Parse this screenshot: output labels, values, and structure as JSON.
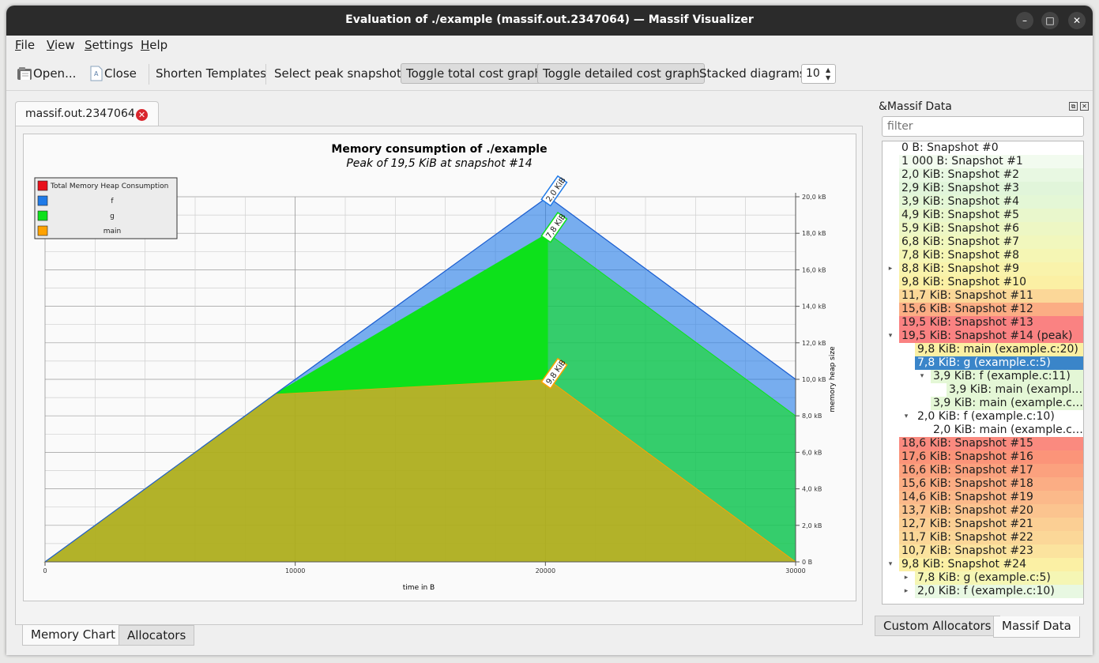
{
  "window": {
    "title": "Evaluation of ./example (massif.out.2347064) — Massif Visualizer",
    "minimize": "–",
    "maximize": "□",
    "close": "✕"
  },
  "menu": [
    "File",
    "View",
    "Settings",
    "Help"
  ],
  "toolbar": {
    "open": "Open...",
    "close": "Close",
    "shorten": "Shorten Templates",
    "select_peak": "Select peak snapshot",
    "toggle_total": "Toggle total cost graph",
    "toggle_detailed": "Toggle detailed cost graph",
    "stacked_label": "Stacked diagrams:",
    "stacked_value": "10"
  },
  "doc_tab": "massif.out.2347064",
  "bottom_tabs": [
    "Memory Chart",
    "Allocators"
  ],
  "dock": {
    "title": "&Massif Data",
    "filter_placeholder": "filter",
    "tabs": [
      "Custom Allocators",
      "Massif Data"
    ]
  },
  "colors": {
    "total": "#e8101a",
    "f": "#1f7ae8",
    "g": "#0de11b",
    "main": "#ffa200",
    "selection": "#3a85c9"
  },
  "tree": [
    {
      "label": "0 B: Snapshot #0",
      "depth": 0,
      "color": "#ffffff",
      "exp": ""
    },
    {
      "label": "1 000 B: Snapshot #1",
      "depth": 0,
      "color": "#f2fbef",
      "exp": ""
    },
    {
      "label": "2,0 KiB: Snapshot #2",
      "depth": 0,
      "color": "#e8f8e2",
      "exp": ""
    },
    {
      "label": "2,9 KiB: Snapshot #3",
      "depth": 0,
      "color": "#e1f5da",
      "exp": ""
    },
    {
      "label": "3,9 KiB: Snapshot #4",
      "depth": 0,
      "color": "#e4f7d6",
      "exp": ""
    },
    {
      "label": "4,9 KiB: Snapshot #5",
      "depth": 0,
      "color": "#e9f7cc",
      "exp": ""
    },
    {
      "label": "5,9 KiB: Snapshot #6",
      "depth": 0,
      "color": "#edf7c4",
      "exp": ""
    },
    {
      "label": "6,8 KiB: Snapshot #7",
      "depth": 0,
      "color": "#f1f7bd",
      "exp": ""
    },
    {
      "label": "7,8 KiB: Snapshot #8",
      "depth": 0,
      "color": "#f5f6b4",
      "exp": ""
    },
    {
      "label": "8,8 KiB: Snapshot #9",
      "depth": 0,
      "color": "#f9f3ab",
      "exp": "▸"
    },
    {
      "label": "9,8 KiB: Snapshot #10",
      "depth": 0,
      "color": "#fbf0a4",
      "exp": ""
    },
    {
      "label": "11,7 KiB: Snapshot #11",
      "depth": 0,
      "color": "#fbd798",
      "exp": ""
    },
    {
      "label": "15,6 KiB: Snapshot #12",
      "depth": 0,
      "color": "#fbad84",
      "exp": ""
    },
    {
      "label": "19,5 KiB: Snapshot #13",
      "depth": 0,
      "color": "#fa8282",
      "exp": ""
    },
    {
      "label": "19,5 KiB: Snapshot #14 (peak)",
      "depth": 0,
      "color": "#fa8282",
      "exp": "▾"
    },
    {
      "label": "9,8 KiB: main (example.c:20)",
      "depth": 1,
      "color": "#fbf0a4",
      "exp": ""
    },
    {
      "label": "7,8 KiB: g (example.c:5)",
      "depth": 1,
      "color": "#3a85c9",
      "exp": "▾",
      "sel": true
    },
    {
      "label": "3,9 KiB: f (example.c:11)",
      "depth": 2,
      "color": "#e4f7d6",
      "exp": "▾"
    },
    {
      "label": "3,9 KiB: main (exampl…",
      "depth": 3,
      "color": "#e4f7d6",
      "exp": ""
    },
    {
      "label": "3,9 KiB: main (example.c:…",
      "depth": 2,
      "color": "#e4f7d6",
      "exp": ""
    },
    {
      "label": "2,0 KiB: f (example.c:10)",
      "depth": 1,
      "color": "#ffffff",
      "exp": "▾"
    },
    {
      "label": "2,0 KiB: main (example.c:…",
      "depth": 2,
      "color": "#ffffff",
      "exp": ""
    },
    {
      "label": "18,6 KiB: Snapshot #15",
      "depth": 0,
      "color": "#fa8a7f",
      "exp": ""
    },
    {
      "label": "17,6 KiB: Snapshot #16",
      "depth": 0,
      "color": "#fb9479",
      "exp": ""
    },
    {
      "label": "16,6 KiB: Snapshot #17",
      "depth": 0,
      "color": "#fba17e",
      "exp": ""
    },
    {
      "label": "15,6 KiB: Snapshot #18",
      "depth": 0,
      "color": "#fbad84",
      "exp": ""
    },
    {
      "label": "14,6 KiB: Snapshot #19",
      "depth": 0,
      "color": "#fbb98a",
      "exp": ""
    },
    {
      "label": "13,7 KiB: Snapshot #20",
      "depth": 0,
      "color": "#fbc48f",
      "exp": ""
    },
    {
      "label": "12,7 KiB: Snapshot #21",
      "depth": 0,
      "color": "#fbcf94",
      "exp": ""
    },
    {
      "label": "11,7 KiB: Snapshot #22",
      "depth": 0,
      "color": "#fbd798",
      "exp": ""
    },
    {
      "label": "10,7 KiB: Snapshot #23",
      "depth": 0,
      "color": "#fbe39e",
      "exp": ""
    },
    {
      "label": "9,8 KiB: Snapshot #24",
      "depth": 0,
      "color": "#fbf0a4",
      "exp": "▾"
    },
    {
      "label": "7,8 KiB: g (example.c:5)",
      "depth": 1,
      "color": "#f5f6b4",
      "exp": "▸"
    },
    {
      "label": "2,0 KiB: f (example.c:10)",
      "depth": 1,
      "color": "#e8f8e2",
      "exp": "▸"
    }
  ],
  "chart_data": {
    "type": "area",
    "title": "Memory consumption of ./example",
    "subtitle": "Peak of 19,5 KiB at snapshot #14",
    "xlabel": "time in B",
    "ylabel": "memory heap size",
    "xlim": [
      0,
      30000
    ],
    "ylim": [
      0,
      20
    ],
    "x_ticks": [
      "0",
      "10000",
      "20000",
      "30000"
    ],
    "y_ticks": [
      "0 B",
      "2,0 kB",
      "4,0 kB",
      "6,0 kB",
      "8,0 kB",
      "10,0 kB",
      "12,0 kB",
      "14,0 kB",
      "16,0 kB",
      "18,0 kB",
      "20,0 kB"
    ],
    "legend_position": "top-left",
    "legend": [
      "Total Memory Heap Consumption",
      "f",
      "g",
      "main"
    ],
    "series": [
      {
        "name": "main",
        "x": [
          0,
          9200,
          20100,
          30000
        ],
        "y": [
          0,
          9.2,
          10,
          0
        ]
      },
      {
        "name": "g",
        "x": [
          0,
          9200,
          20100,
          30000
        ],
        "y": [
          0,
          9.2,
          18,
          8
        ]
      },
      {
        "name": "f",
        "x": [
          0,
          9200,
          20100,
          30000
        ],
        "y": [
          0,
          9.2,
          20,
          10
        ]
      }
    ],
    "annotations": [
      {
        "text": "2,0 KiB",
        "series": "f",
        "x": 20100,
        "y": 20
      },
      {
        "text": "7,8 KiB",
        "series": "g",
        "x": 20100,
        "y": 18
      },
      {
        "text": "9,8 KiB",
        "series": "main",
        "x": 20100,
        "y": 10
      }
    ]
  }
}
